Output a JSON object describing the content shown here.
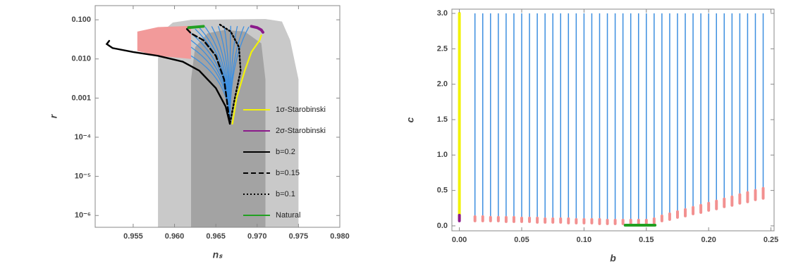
{
  "chart_data": [
    {
      "type": "line",
      "xlabel": "nₛ",
      "ylabel": "r",
      "ylog": true,
      "legend": "lower right",
      "xlim": [
        0.9504,
        0.98
      ],
      "ylim": [
        5e-07,
        0.23
      ],
      "xticks": [
        0.955,
        {
          "value": 0.96,
          "label": "0.960"
        },
        0.965,
        {
          "value": 0.97,
          "label": "0.970"
        },
        0.975,
        {
          "value": 0.98,
          "label": "0.980"
        }
      ],
      "yticks": [
        {
          "value": 1e-06,
          "label": "10⁻⁶"
        },
        {
          "value": 1e-05,
          "label": "10⁻⁵"
        },
        {
          "value": 0.0001,
          "label": "10⁻⁴"
        },
        {
          "value": 0.001,
          "label": "0.001"
        },
        {
          "value": 0.01,
          "label": "0.010"
        },
        {
          "value": 0.1,
          "label": "0.100"
        }
      ],
      "regions": [
        {
          "color": "#c9c9c9",
          "x": [
            0.958,
            0.958,
            0.9585,
            0.9598,
            0.962,
            0.971,
            0.973,
            0.974,
            0.975,
            0.975
          ],
          "y": [
            5e-07,
            0.01,
            0.05,
            0.085,
            0.1,
            0.105,
            0.09,
            0.03,
            0.003,
            5e-07
          ]
        },
        {
          "color": "#a3a3a3",
          "x": [
            0.962,
            0.962,
            0.9625,
            0.964,
            0.966,
            0.9685,
            0.9705,
            0.971,
            0.971
          ],
          "y": [
            5e-07,
            0.003,
            0.02,
            0.045,
            0.055,
            0.05,
            0.025,
            0.003,
            5e-07
          ]
        },
        {
          "color": "#f29a9a",
          "x": [
            0.9555,
            0.9555,
            0.958,
            0.962,
            0.962,
            0.958
          ],
          "y": [
            0.016,
            0.05,
            0.065,
            0.07,
            0.01,
            0.012
          ]
        }
      ],
      "fan": {
        "color": "#3d8fe0",
        "apex_x": 0.9667,
        "apex_y": 0.00022,
        "end_x": [
          0.962,
          0.962,
          0.962,
          0.962,
          0.9625,
          0.963,
          0.9637,
          0.9645,
          0.9653,
          0.966,
          0.9668,
          0.9676,
          0.9684,
          0.969
        ],
        "end_y": [
          0.012,
          0.02,
          0.03,
          0.045,
          0.058,
          0.063,
          0.066,
          0.068,
          0.069,
          0.07,
          0.07,
          0.069,
          0.068,
          0.066
        ]
      },
      "series": [
        {
          "name": "1σ-Starobinski",
          "color": "#f2f20a",
          "dash": "solid",
          "x": [
            0.967,
            0.9675,
            0.9685,
            0.9693,
            0.9703,
            0.9705
          ],
          "y": [
            0.00022,
            0.001,
            0.005,
            0.015,
            0.03,
            0.04
          ]
        },
        {
          "name": "2σ-Starobinski",
          "color": "#8b1a8b",
          "dash": "solid",
          "x": [
            0.9693,
            0.97,
            0.9705,
            0.9707
          ],
          "y": [
            0.068,
            0.063,
            0.055,
            0.048
          ]
        },
        {
          "name": "b=0.2",
          "color": "#000000",
          "dash": "solid",
          "x": [
            0.9521,
            0.9518,
            0.9525,
            0.955,
            0.958,
            0.961,
            0.963,
            0.965,
            0.9662,
            0.9667
          ],
          "y": [
            0.029,
            0.024,
            0.019,
            0.015,
            0.012,
            0.0085,
            0.005,
            0.0018,
            0.0006,
            0.00022
          ]
        },
        {
          "name": "b=0.15",
          "color": "#000000",
          "dash": "dashed",
          "x": [
            0.9615,
            0.962,
            0.9635,
            0.965,
            0.966,
            0.9667
          ],
          "y": [
            0.058,
            0.045,
            0.03,
            0.012,
            0.003,
            0.00022
          ]
        },
        {
          "name": "b=0.1",
          "color": "#000000",
          "dash": "dotted",
          "x": [
            0.9655,
            0.9668,
            0.9678,
            0.968,
            0.9673,
            0.9667
          ],
          "y": [
            0.075,
            0.05,
            0.02,
            0.005,
            0.001,
            0.00022
          ]
        },
        {
          "name": "Natural",
          "color": "#22a022",
          "dash": "solid",
          "x": [
            0.9617,
            0.9635
          ],
          "y": [
            0.063,
            0.068
          ]
        }
      ]
    },
    {
      "type": "segments",
      "xlabel": "b",
      "ylabel": "c",
      "xlim": [
        -0.006,
        0.2525
      ],
      "ylim": [
        -0.07,
        3.06
      ],
      "xticks": [
        {
          "value": 0,
          "label": "0.00"
        },
        0.05,
        {
          "value": 0.1,
          "label": "0.10"
        },
        0.15,
        {
          "value": 0.2,
          "label": "0.20"
        },
        0.25
      ],
      "yticks": [
        {
          "value": 0,
          "label": "0.0"
        },
        0.5,
        {
          "value": 1,
          "label": "1.0"
        },
        1.5,
        {
          "value": 2,
          "label": "2.0"
        },
        2.5,
        {
          "value": 3,
          "label": "3.0"
        }
      ],
      "line_color": "#3d8fe0",
      "band_color": "#f29090",
      "c_max": 3,
      "b": [
        0.0125,
        0.01875,
        0.025,
        0.03125,
        0.0375,
        0.04375,
        0.05,
        0.05625,
        0.0625,
        0.06875,
        0.075,
        0.08125,
        0.0875,
        0.09375,
        0.1,
        0.10625,
        0.1125,
        0.11875,
        0.125,
        0.13125,
        0.1375,
        0.14375,
        0.15,
        0.15625,
        0.1625,
        0.16875,
        0.175,
        0.18125,
        0.1875,
        0.19375,
        0.2,
        0.20625,
        0.2125,
        0.21875,
        0.225,
        0.23125,
        0.2375,
        0.24375
      ],
      "c_low": [
        0.07,
        0.07,
        0.07,
        0.07,
        0.06,
        0.06,
        0.06,
        0.06,
        0.05,
        0.05,
        0.05,
        0.05,
        0.04,
        0.04,
        0.04,
        0.04,
        0.03,
        0.03,
        0.03,
        0.03,
        0.03,
        0.03,
        0.03,
        0.04,
        0.07,
        0.09,
        0.12,
        0.14,
        0.17,
        0.19,
        0.22,
        0.24,
        0.27,
        0.29,
        0.32,
        0.34,
        0.37,
        0.39
      ],
      "c_high": [
        0.13,
        0.13,
        0.12,
        0.12,
        0.12,
        0.12,
        0.11,
        0.11,
        0.11,
        0.1,
        0.1,
        0.1,
        0.1,
        0.09,
        0.09,
        0.09,
        0.09,
        0.08,
        0.08,
        0.08,
        0.08,
        0.08,
        0.08,
        0.1,
        0.14,
        0.17,
        0.2,
        0.23,
        0.26,
        0.29,
        0.32,
        0.35,
        0.38,
        0.41,
        0.44,
        0.47,
        0.5,
        0.53
      ],
      "series": [
        {
          "color": "#f2f20a",
          "dash": "solid",
          "x": [
            0,
            0
          ],
          "y": [
            0.1,
            3
          ]
        },
        {
          "color": "#8b1a8b",
          "dash": "solid",
          "x": [
            0,
            0
          ],
          "y": [
            0.07,
            0.15
          ]
        },
        {
          "color": "#22a022",
          "dash": "solid",
          "x": [
            0.133,
            0.157
          ],
          "y": [
            0.01,
            0.01
          ]
        }
      ]
    }
  ]
}
